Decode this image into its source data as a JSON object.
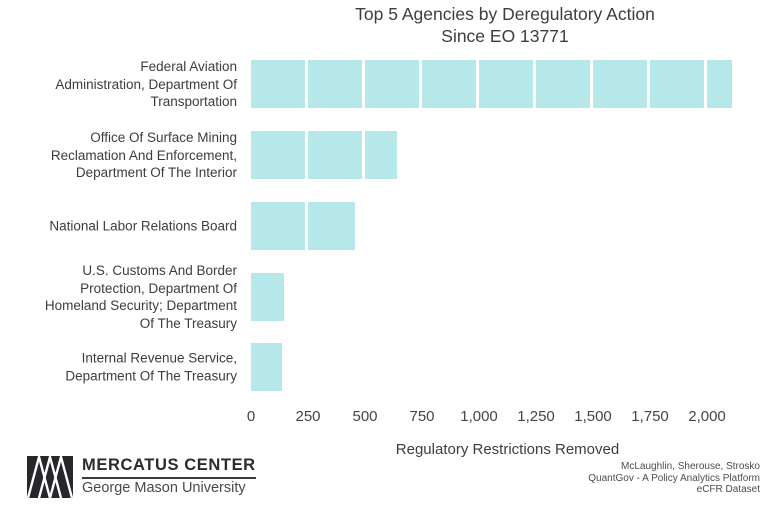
{
  "title": {
    "line1": "Top 5 Agencies by Deregulatory Action",
    "line2": "Since EO 13771"
  },
  "chart_data": {
    "type": "bar",
    "orientation": "horizontal",
    "title": "Top 5 Agencies by Deregulatory Action Since EO 13771",
    "categories": [
      "Federal Aviation Administration, Department Of Transportation",
      "Office Of Surface Mining Reclamation And Enforcement, Department Of The Interior",
      "National Labor Relations Board",
      "U.S. Customs And Border Protection, Department Of Homeland Security; Department Of The Treasury",
      "Internal Revenue Service, Department Of The Treasury"
    ],
    "categories_display_lines": [
      [
        "Federal Aviation",
        "Administration, Department Of",
        "Transportation"
      ],
      [
        "Office Of Surface Mining",
        "Reclamation And Enforcement,",
        "Department Of The Interior"
      ],
      [
        "National Labor Relations Board"
      ],
      [
        "U.S. Customs And Border",
        "Protection, Department Of",
        "Homeland Security; Department",
        "Of The Treasury"
      ],
      [
        "Internal Revenue Service,",
        "Department Of The Treasury"
      ]
    ],
    "values": [
      2110,
      640,
      455,
      145,
      135
    ],
    "segment_size": 250,
    "xlabel": "Regulatory Restrictions Removed",
    "ylabel": "",
    "xlim": [
      0,
      2250
    ],
    "xticks": [
      0,
      250,
      500,
      750,
      1000,
      1250,
      1500,
      1750,
      2000
    ],
    "xtick_labels": [
      "0",
      "250",
      "500",
      "750",
      "1,000",
      "1,250",
      "1,500",
      "1,750",
      "2,000"
    ],
    "bar_color": "#b6e7e9",
    "gap_color": "#ffffff",
    "grid": false,
    "legend_position": "none"
  },
  "footer": {
    "logo": {
      "org": "MERCATUS CENTER",
      "university": "George Mason University"
    },
    "attribution": [
      "McLaughlin, Sherouse, Strosko",
      "QuantGov - A Policy Analytics Platform",
      "eCFR Dataset"
    ]
  },
  "colors": {
    "background": "#ffffff",
    "bar": "#b6e7e9",
    "text_dark": "#3d3d3d",
    "text_gray": "#4d4d4d",
    "logo_mark": "#26262b"
  }
}
